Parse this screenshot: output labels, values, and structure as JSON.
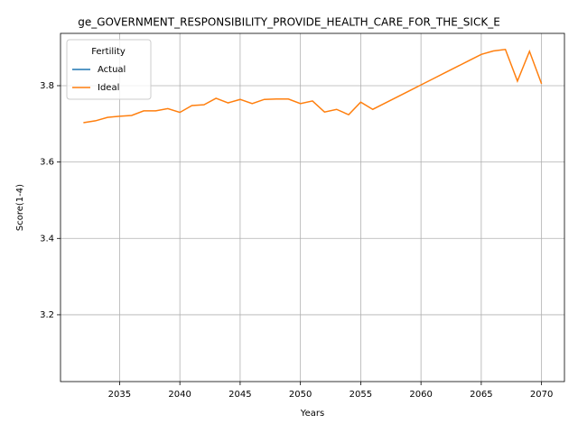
{
  "chart_data": {
    "type": "line",
    "title": "ge_GOVERNMENT_RESPONSIBILITY_PROVIDE_HEALTH_CARE_FOR_THE_SICK_E",
    "x_label": "Years",
    "y_label": "Score(1-4)",
    "x": [
      2032,
      2033,
      2034,
      2035,
      2036,
      2037,
      2038,
      2039,
      2040,
      2041,
      2042,
      2043,
      2044,
      2045,
      2046,
      2047,
      2048,
      2049,
      2050,
      2051,
      2052,
      2053,
      2054,
      2055,
      2056,
      2057,
      2058,
      2059,
      2060,
      2061,
      2062,
      2063,
      2064,
      2065,
      2066,
      2067,
      2068,
      2069,
      2070
    ],
    "series": [
      {
        "name": "Actual",
        "color": "#1f77b4",
        "values": [
          null,
          null,
          null,
          null,
          null,
          null,
          null,
          null,
          null,
          null,
          null,
          null,
          null,
          null,
          null,
          null,
          null,
          null,
          null,
          null,
          null,
          null,
          null,
          null,
          null,
          null,
          null,
          null,
          null,
          null,
          null,
          null,
          null,
          null,
          null,
          null,
          null,
          null,
          null
        ]
      },
      {
        "name": "Ideal",
        "color": "#ff7f0e",
        "values": [
          3.703,
          3.708,
          3.717,
          3.72,
          3.722,
          3.734,
          3.734,
          3.74,
          3.73,
          3.748,
          3.75,
          3.767,
          3.755,
          3.764,
          3.753,
          3.764,
          3.765,
          3.765,
          3.753,
          3.76,
          3.731,
          3.738,
          3.724,
          3.757,
          3.738,
          3.754,
          3.77,
          3.786,
          3.802,
          3.818,
          3.834,
          3.85,
          3.866,
          3.882,
          3.891,
          3.895,
          3.812,
          3.89,
          3.805
        ]
      }
    ],
    "legend_title": "Fertility",
    "legend_position": "upper left",
    "xlim": [
      2030.1,
      2071.9
    ],
    "ylim": [
      3.025,
      3.937
    ],
    "xticks": [
      2035,
      2040,
      2045,
      2050,
      2055,
      2060,
      2065,
      2070
    ],
    "yticks": [
      3.2,
      3.4,
      3.6,
      3.8
    ],
    "grid": true
  }
}
